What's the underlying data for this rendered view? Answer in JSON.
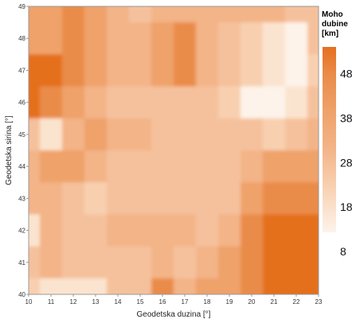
{
  "chart_data": {
    "type": "heatmap",
    "title": "",
    "xlabel": "Geodetska duzina [°]",
    "ylabel": "Geodetska sirina [°]",
    "xlim": [
      10,
      23
    ],
    "ylim": [
      40,
      49
    ],
    "x_ticks": [
      "10",
      "11",
      "12",
      "13",
      "14",
      "15",
      "16",
      "17",
      "18",
      "19",
      "20",
      "21",
      "22",
      "23"
    ],
    "y_ticks": [
      "40",
      "41",
      "42",
      "43",
      "44",
      "45",
      "46",
      "47",
      "48",
      "49"
    ],
    "legend": {
      "title_lines": [
        "Moho",
        "dubine",
        "[km]"
      ],
      "ticks": [
        "48",
        "38",
        "28",
        "18",
        "8"
      ],
      "range": [
        8,
        54
      ],
      "placement": "right"
    },
    "colors": {
      "deep": "#e5701f",
      "shallow": "#fdf1e8",
      "levels": [
        "#fdf3ea",
        "#fbe4cf",
        "#f8d0b0",
        "#f5c19c",
        "#f3b488",
        "#efa26a",
        "#ea8c49",
        "#e5701f"
      ],
      "frame": "#999999"
    },
    "grid": false,
    "note_values": "approximate Moho depth (km) on a 1° grid, rows from 49°N down to 40°N, columns from 10°E to 23°E",
    "grid_lon": [
      10,
      11,
      12,
      13,
      14,
      15,
      16,
      17,
      18,
      19,
      20,
      21,
      22,
      23
    ],
    "grid_lat": [
      49,
      48,
      47,
      46,
      45,
      44,
      43,
      42,
      41,
      40
    ],
    "z": [
      [
        36,
        37,
        38,
        36,
        33,
        30,
        33,
        32,
        32,
        34,
        33,
        31,
        30,
        30
      ],
      [
        35,
        37,
        38,
        37,
        34,
        31,
        35,
        40,
        33,
        29,
        25,
        22,
        21,
        28
      ],
      [
        42,
        44,
        40,
        37,
        34,
        31,
        36,
        38,
        32,
        28,
        25,
        22,
        21,
        25
      ],
      [
        42,
        40,
        36,
        33,
        30,
        28,
        29,
        30,
        29,
        25,
        20,
        20,
        22,
        30
      ],
      [
        29,
        24,
        34,
        37,
        34,
        32,
        30,
        28,
        29,
        28,
        28,
        27,
        29,
        33
      ],
      [
        33,
        37,
        36,
        33,
        30,
        29,
        28,
        28,
        29,
        30,
        33,
        35,
        35,
        35
      ],
      [
        34,
        33,
        28,
        26,
        28,
        30,
        30,
        29,
        28,
        30,
        35,
        38,
        38,
        39
      ],
      [
        23,
        31,
        30,
        29,
        31,
        32,
        33,
        32,
        30,
        34,
        40,
        42,
        42,
        42
      ],
      [
        30,
        32,
        30,
        28,
        28,
        30,
        31,
        30,
        33,
        35,
        40,
        44,
        44,
        43
      ],
      [
        26,
        24,
        22,
        24,
        28,
        30,
        38,
        32,
        36,
        37,
        40,
        42,
        43,
        41
      ]
    ]
  }
}
